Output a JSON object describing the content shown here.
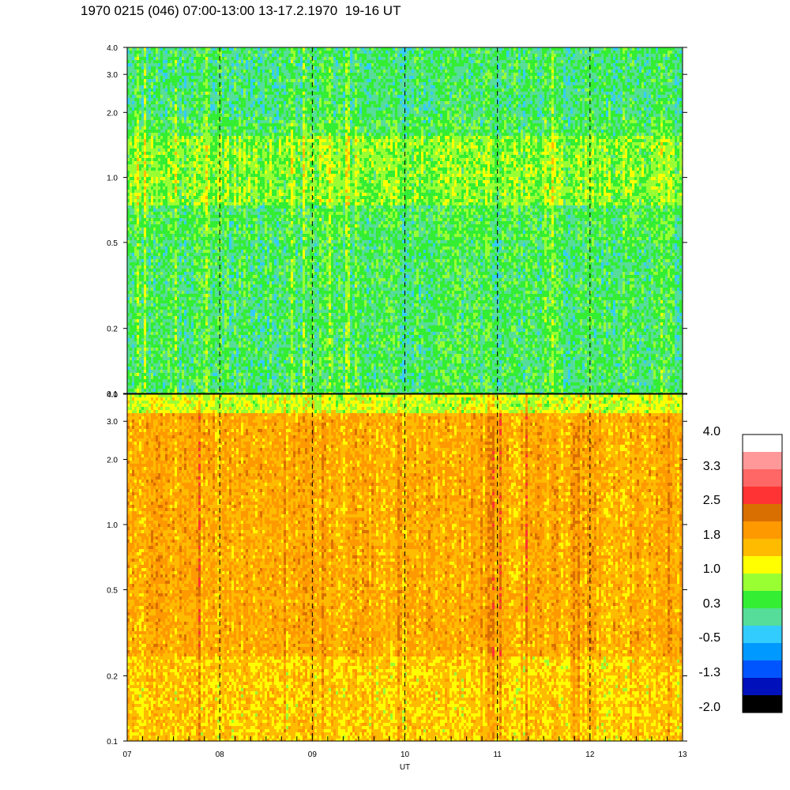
{
  "title": "1970 0215 (046) 07:00-13:00 13-17.2.1970  19-16 UT",
  "chart_data": {
    "type": "heatmap",
    "xlabel": "UT",
    "x_tick_labels": [
      "07",
      "08",
      "09",
      "10",
      "11",
      "12",
      "13"
    ],
    "x_range": [
      7,
      13
    ],
    "y_scale": "log",
    "y_range": [
      0.1,
      4.0
    ],
    "y_tick_values": [
      0.1,
      0.2,
      0.5,
      1.0,
      2.0,
      3.0,
      4.0
    ],
    "y_tick_labels": [
      "0.1",
      "0.2",
      "0.5",
      "1.0",
      "2.0",
      "3.0",
      "4.0"
    ],
    "dashed_hour_markers": [
      8,
      9,
      10,
      11,
      12
    ],
    "panels": [
      {
        "name": "upper",
        "dominant_range": "-0.5 to 1.0"
      },
      {
        "name": "lower",
        "dominant_range": "1.0 to 2.5"
      }
    ],
    "colorbar": {
      "colors": [
        "#ffffff",
        "#ff9999",
        "#ff6666",
        "#ff3333",
        "#d96f00",
        "#ff9900",
        "#ffbb00",
        "#ffff00",
        "#99ff33",
        "#33ee33",
        "#55dd99",
        "#33ccff",
        "#0099ff",
        "#0055ff",
        "#0011bb",
        "#000000"
      ],
      "labels": [
        "4.0",
        "3.3",
        "2.5",
        "1.8",
        "1.0",
        "0.3",
        "-0.5",
        "-1.3",
        "-2.0"
      ]
    }
  }
}
